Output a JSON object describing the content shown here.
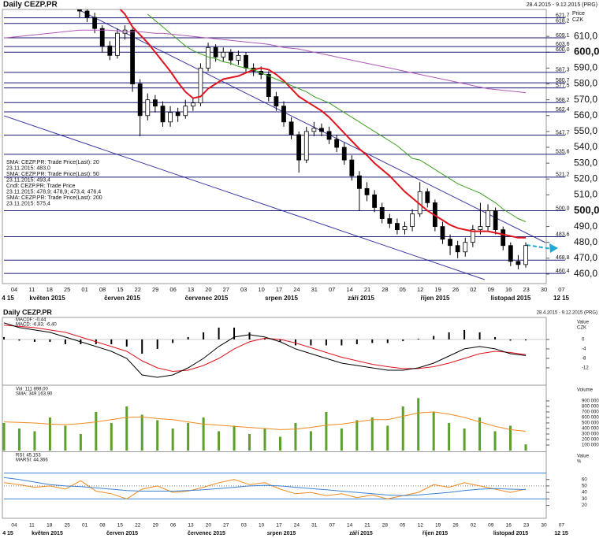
{
  "chart_data": [
    {
      "type": "candlestick",
      "title": "Daily CEZP.PR",
      "subtitle": "28.4.2015 - 9.12.2015 (PRG)",
      "y_label": "Price",
      "y_unit": "CZK",
      "ylim": [
        454,
        627
      ],
      "yticks": [
        {
          "value": 610,
          "label": "610,0"
        },
        {
          "value": 600,
          "label": "600,0"
        },
        {
          "value": 590,
          "label": "590,0"
        },
        {
          "value": 580,
          "label": "580,0"
        },
        {
          "value": 570,
          "label": "570,0"
        },
        {
          "value": 560,
          "label": "560,0"
        },
        {
          "value": 550,
          "label": "550,0"
        },
        {
          "value": 540,
          "label": "540,0"
        },
        {
          "value": 530,
          "label": "530,0"
        },
        {
          "value": 520,
          "label": "520,0"
        },
        {
          "value": 510,
          "label": "510,0"
        },
        {
          "value": 500,
          "label": "500,0"
        },
        {
          "value": 490,
          "label": "490,0"
        },
        {
          "value": 480,
          "label": "480,0"
        },
        {
          "value": 470,
          "label": "470,0"
        },
        {
          "value": 460,
          "label": "460,0"
        }
      ],
      "levels": [
        {
          "value": 621.7,
          "label": "621,7"
        },
        {
          "value": 618.2,
          "label": "618,2"
        },
        {
          "value": 609.1,
          "label": "609,1"
        },
        {
          "value": 603.6,
          "label": "603,6"
        },
        {
          "value": 600.0,
          "label": "600,0"
        },
        {
          "value": 587.3,
          "label": "587,3"
        },
        {
          "value": 580.7,
          "label": "580,7"
        },
        {
          "value": 577.5,
          "label": "577,5"
        },
        {
          "value": 568.2,
          "label": "568,2"
        },
        {
          "value": 562.4,
          "label": "562,4"
        },
        {
          "value": 547.7,
          "label": "547,7"
        },
        {
          "value": 535.6,
          "label": "535,6"
        },
        {
          "value": 521.2,
          "label": "521,2"
        },
        {
          "value": 500.0,
          "label": "500,0"
        },
        {
          "value": 483.6,
          "label": "483,6"
        },
        {
          "value": 468.8,
          "label": "468,8"
        },
        {
          "value": 460.4,
          "label": "460,4"
        }
      ],
      "level_color": "#1a1a7a",
      "date_ticks": [
        "04",
        "11",
        "18",
        "25",
        "01",
        "08",
        "15",
        "22",
        "29",
        "06",
        "13",
        "20",
        "27",
        "03",
        "10",
        "17",
        "24",
        "31",
        "07",
        "14",
        "21",
        "28",
        "05",
        "12",
        "19",
        "26",
        "02",
        "09",
        "16",
        "23",
        "30",
        "07"
      ],
      "month_labels": [
        "4 15",
        "květen 2015",
        "červen 2015",
        "červenec 2015",
        "srpen 2015",
        "září 2015",
        "říjen 2015",
        "listopad 2015",
        "12 15"
      ],
      "candles": {
        "name": "Cndl: CEZP.PR: Trade Price",
        "legend_value": "23.11.2015: 478,9; 478,9; 473,4; 476,4",
        "color": "#000000",
        "open": [
          null,
          null,
          null,
          null,
          null,
          null,
          null,
          null,
          null,
          null,
          628,
          626,
          622,
          615,
          604,
          598,
          612,
          614,
          580,
          560,
          570,
          566,
          556,
          562,
          560,
          566,
          568,
          590,
          603,
          597,
          600,
          595,
          598,
          590,
          588,
          586,
          572,
          566,
          556,
          548,
          532,
          550,
          552,
          550,
          545,
          540,
          532,
          522,
          514,
          510,
          502,
          495,
          492,
          488,
          490,
          498,
          512,
          505,
          490,
          482,
          478,
          474,
          480,
          488,
          490,
          500,
          488,
          478,
          468,
          466
        ],
        "high": [
          null,
          null,
          null,
          null,
          null,
          null,
          null,
          null,
          null,
          null,
          631,
          629,
          625,
          617,
          607,
          615,
          617,
          615,
          583,
          574,
          573,
          569,
          566,
          565,
          570,
          571,
          593,
          606,
          605,
          603,
          602,
          601,
          600,
          593,
          591,
          588,
          575,
          569,
          559,
          550,
          553,
          556,
          555,
          553,
          548,
          543,
          535,
          525,
          518,
          513,
          505,
          498,
          495,
          493,
          501,
          518,
          514,
          507,
          493,
          485,
          481,
          483,
          491,
          505,
          504,
          502,
          490,
          480,
          472,
          480
        ],
        "low": [
          null,
          null,
          null,
          null,
          null,
          null,
          null,
          null,
          null,
          null,
          622,
          619,
          612,
          600,
          595,
          596,
          608,
          575,
          547,
          557,
          562,
          553,
          553,
          556,
          558,
          563,
          566,
          588,
          594,
          594,
          592,
          592,
          587,
          585,
          583,
          569,
          563,
          553,
          545,
          524,
          530,
          547,
          547,
          542,
          537,
          529,
          519,
          500,
          506,
          499,
          492,
          489,
          485,
          485,
          487,
          496,
          502,
          487,
          479,
          472,
          470,
          471,
          477,
          485,
          487,
          485,
          475,
          465,
          463,
          464
        ],
        "close": [
          null,
          null,
          null,
          null,
          null,
          null,
          null,
          null,
          null,
          null,
          626,
          622,
          615,
          604,
          598,
          612,
          614,
          580,
          560,
          570,
          566,
          556,
          562,
          560,
          566,
          568,
          590,
          603,
          597,
          600,
          595,
          598,
          590,
          588,
          586,
          572,
          566,
          556,
          548,
          532,
          550,
          552,
          550,
          545,
          540,
          532,
          522,
          514,
          510,
          502,
          495,
          492,
          488,
          490,
          498,
          512,
          505,
          490,
          482,
          478,
          474,
          480,
          488,
          490,
          500,
          488,
          478,
          468,
          466,
          478
        ]
      },
      "series": [
        {
          "name": "SMA: CEZP.PR: Trade Price(Last): 20",
          "legend_value": "23.11.2015: 483,0",
          "color": "#e0141e",
          "width": 2,
          "values": [
            null,
            null,
            null,
            null,
            null,
            null,
            null,
            null,
            null,
            null,
            null,
            null,
            null,
            null,
            null,
            629,
            624,
            616,
            611,
            606,
            600,
            594,
            588,
            581,
            575,
            571,
            572,
            577,
            580,
            583,
            584,
            585,
            587,
            589,
            590,
            589,
            586,
            582,
            577,
            572,
            569,
            566,
            563,
            559,
            554,
            549,
            544,
            539,
            535,
            530,
            526,
            522,
            517,
            512,
            508,
            504,
            500,
            497,
            494,
            491,
            489,
            488,
            487,
            487,
            487,
            486,
            485,
            484,
            483,
            483
          ]
        },
        {
          "name": "SMA: CEZP.PR: Trade Price(Last): 50",
          "legend_value": "23.11.2015: 493,4",
          "color": "#3aa01e",
          "width": 1,
          "values": [
            null,
            null,
            null,
            null,
            null,
            null,
            null,
            null,
            null,
            null,
            null,
            null,
            null,
            null,
            null,
            null,
            null,
            null,
            null,
            624,
            620,
            616,
            612,
            608,
            604,
            601,
            599,
            597,
            596,
            594,
            593,
            591,
            590,
            589,
            587,
            585,
            583,
            581,
            579,
            577,
            575,
            572,
            570,
            568,
            565,
            562,
            559,
            556,
            553,
            550,
            547,
            544,
            541,
            537,
            533,
            532,
            529,
            526,
            523,
            520,
            517,
            515,
            513,
            511,
            508,
            505,
            501,
            498,
            495,
            493
          ]
        },
        {
          "name": "Cndl",
          "legend_value": "",
          "color": "#000000",
          "width": 0,
          "values": []
        },
        {
          "name": "SMA: CEZP.PR: Trade Price(Last): 200",
          "legend_value": "23.11.2015: 575,4",
          "color": "#b05ab8",
          "width": 1,
          "values": [
            609,
            609.5,
            610,
            610.5,
            611,
            611.5,
            612,
            612.5,
            613,
            613.5,
            614,
            614,
            614,
            614,
            614,
            613.5,
            613,
            613,
            613,
            612.5,
            612,
            612,
            611.5,
            611,
            610.5,
            610,
            609.5,
            609,
            608.5,
            608,
            607.5,
            607,
            606.5,
            606,
            605.5,
            605,
            604,
            603,
            602.5,
            602,
            601,
            600,
            599,
            598,
            597,
            596,
            595,
            594,
            593,
            592,
            591,
            590,
            589,
            588,
            587,
            586,
            585,
            584,
            583,
            582,
            581,
            580,
            579,
            578,
            577,
            576.5,
            576,
            575.5,
            575,
            574.5
          ]
        }
      ]
    },
    {
      "type": "macd",
      "title": "Daily CEZP.PR",
      "subtitle": "28.4.2015 - 9.12.2015 (PRG)",
      "y_label": "Value",
      "y_unit": "CZK",
      "ylim": [
        -19,
        9.3
      ],
      "yticks": [
        0,
        -4,
        -8,
        -12
      ],
      "histogram": {
        "name": "MACDF: -0,44",
        "color": "#000000",
        "values": [
          1,
          -0.5,
          -1,
          -1,
          -2,
          -2,
          -2,
          -2,
          -3,
          -6,
          -4,
          -1.5,
          1,
          3,
          5,
          5,
          3,
          0.5,
          -1,
          -2.5,
          -2.5,
          -2.5,
          -2.5,
          -2,
          -1.5,
          -1.5,
          -0.7,
          0.3,
          1.5,
          3,
          4,
          3,
          1,
          -0.5,
          -0.4
        ]
      },
      "macd": {
        "name": "MACD: -6,83; -6,40",
        "color": "#000000",
        "values": [
          7,
          5,
          4,
          3,
          1,
          -1,
          -3,
          -5,
          -8,
          -15,
          -16,
          -15,
          -12,
          -8,
          -3,
          1,
          2,
          1,
          -1,
          -4,
          -6,
          -8,
          -10,
          -11,
          -12,
          -13,
          -13,
          -12,
          -10,
          -7,
          -4,
          -3,
          -4,
          -6,
          -6.8
        ]
      },
      "signal": {
        "color": "#e0141e",
        "values": [
          6,
          5.5,
          5,
          4,
          3,
          1,
          -1,
          -3,
          -5,
          -9,
          -12,
          -13.5,
          -13,
          -11,
          -8,
          -4,
          -1,
          0.5,
          0,
          -1.5,
          -3.5,
          -5.5,
          -7.5,
          -9,
          -10.5,
          -11.5,
          -12.3,
          -12.3,
          -11.5,
          -10,
          -8,
          -6,
          -5,
          -5.5,
          -6.4
        ]
      }
    },
    {
      "type": "bar",
      "y_label": "Volume",
      "ylim": [
        0,
        1170000
      ],
      "yticks": [
        {
          "value": 900000,
          "label": "900 000"
        },
        {
          "value": 800000,
          "label": "800 000"
        },
        {
          "value": 700000,
          "label": "700 000"
        },
        {
          "value": 600000,
          "label": "600 000"
        },
        {
          "value": 500000,
          "label": "500 000"
        },
        {
          "value": 400000,
          "label": "400 000"
        },
        {
          "value": 300000,
          "label": "300 000"
        },
        {
          "value": 200000,
          "label": "200 000"
        },
        {
          "value": 100000,
          "label": "100 000"
        }
      ],
      "series": [
        {
          "name": "Vol: 111 898,00",
          "color": "#5aa02a",
          "values": [
            500000,
            400000,
            350000,
            600000,
            450000,
            300000,
            700000,
            500000,
            800000,
            650000,
            550000,
            400000,
            500000,
            600000,
            350000,
            450000,
            300000,
            400000,
            250000,
            500000,
            350000,
            700000,
            400000,
            550000,
            600000,
            450000,
            800000,
            950000,
            700000,
            500000,
            400000,
            600000,
            350000,
            450000,
            111898
          ]
        },
        {
          "name": "SMA: 349 163,90",
          "color": "#f08a1e",
          "values": [
            520000,
            510000,
            500000,
            480000,
            470000,
            490000,
            520000,
            560000,
            600000,
            610000,
            580000,
            560000,
            520000,
            480000,
            460000,
            440000,
            420000,
            400000,
            380000,
            390000,
            420000,
            460000,
            480000,
            520000,
            560000,
            560000,
            620000,
            680000,
            700000,
            660000,
            600000,
            520000,
            440000,
            380000,
            349163.9
          ]
        }
      ]
    },
    {
      "type": "line",
      "y_label": "Value",
      "y_unit": "%",
      "ylim": [
        0,
        101
      ],
      "yticks": [
        60,
        50,
        40,
        30,
        20
      ],
      "reference_lines": [
        70,
        30
      ],
      "reference_color": "#3c82d2",
      "dotted_line": 50,
      "series": [
        {
          "name": "RSI: 45,153",
          "color": "#f08a1e",
          "values": [
            55,
            52,
            48,
            50,
            45,
            58,
            42,
            38,
            30,
            45,
            50,
            40,
            42,
            48,
            55,
            60,
            52,
            55,
            45,
            38,
            40,
            35,
            38,
            32,
            36,
            30,
            35,
            40,
            52,
            48,
            55,
            50,
            45,
            40,
            45.153
          ]
        },
        {
          "name": "MARSI: 44,366",
          "color": "#3c82d2",
          "values": [
            63,
            60,
            56,
            52,
            50,
            49,
            47,
            45,
            43,
            42,
            42,
            42,
            43,
            44,
            46,
            48,
            50,
            51,
            50,
            48,
            46,
            44,
            42,
            40,
            38,
            36,
            35,
            36,
            38,
            40,
            43,
            45,
            46,
            45,
            44.366
          ]
        }
      ]
    }
  ]
}
